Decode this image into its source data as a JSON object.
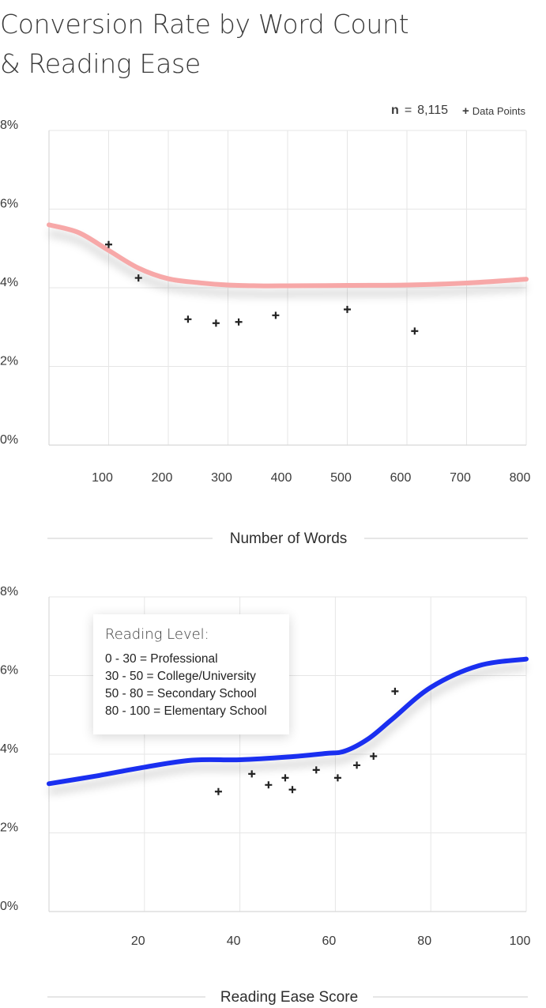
{
  "title": {
    "line1": "Conversion Rate by Word Count",
    "line2": "& Reading Ease"
  },
  "legend": {
    "n_symbol": "n",
    "n_equals": "=",
    "n_value": "8,115",
    "points_marker": "+",
    "points_label": "Data Points"
  },
  "reading_level": {
    "title": "Reading Level:",
    "items": [
      "0 - 30 = Professional",
      "30 - 50 = College/University",
      "50 - 80 = Secondary School",
      "80 - 100 = Elementary School"
    ]
  },
  "colors": {
    "chart1_line": "#f7a8a8",
    "chart2_line": "#1a2ff0",
    "points": "#222222",
    "grid": "#e6e6e6"
  },
  "chart_data": [
    {
      "type": "scatter",
      "title": "",
      "xlabel": "Number of Words",
      "ylabel": "",
      "xlim": [
        0,
        800
      ],
      "ylim": [
        0,
        8
      ],
      "x_ticks": [
        100,
        200,
        300,
        400,
        500,
        600,
        700,
        800
      ],
      "y_ticks": [
        0,
        2,
        4,
        6,
        8
      ],
      "y_tick_labels": [
        "0%",
        "2%",
        "4%",
        "6%",
        "8%"
      ],
      "grid": true,
      "points": [
        {
          "x": 100,
          "y": 5.1
        },
        {
          "x": 150,
          "y": 4.25
        },
        {
          "x": 233,
          "y": 3.2
        },
        {
          "x": 280,
          "y": 3.1
        },
        {
          "x": 318,
          "y": 3.13
        },
        {
          "x": 380,
          "y": 3.3
        },
        {
          "x": 500,
          "y": 3.45
        },
        {
          "x": 613,
          "y": 2.9
        }
      ],
      "trend": [
        {
          "x": 0,
          "y": 5.6
        },
        {
          "x": 50,
          "y": 5.4
        },
        {
          "x": 100,
          "y": 4.95
        },
        {
          "x": 150,
          "y": 4.5
        },
        {
          "x": 200,
          "y": 4.23
        },
        {
          "x": 250,
          "y": 4.13
        },
        {
          "x": 300,
          "y": 4.07
        },
        {
          "x": 350,
          "y": 4.05
        },
        {
          "x": 400,
          "y": 4.05
        },
        {
          "x": 500,
          "y": 4.06
        },
        {
          "x": 600,
          "y": 4.07
        },
        {
          "x": 700,
          "y": 4.12
        },
        {
          "x": 800,
          "y": 4.22
        }
      ]
    },
    {
      "type": "scatter",
      "title": "",
      "xlabel": "Reading Ease Score",
      "ylabel": "",
      "xlim": [
        0,
        100
      ],
      "ylim": [
        0,
        8
      ],
      "x_ticks": [
        20,
        40,
        60,
        80,
        100
      ],
      "y_ticks": [
        0,
        2,
        4,
        6,
        8
      ],
      "y_tick_labels": [
        "0%",
        "2%",
        "4%",
        "6%",
        "8%"
      ],
      "grid": true,
      "points": [
        {
          "x": 35.5,
          "y": 3.05
        },
        {
          "x": 42.5,
          "y": 3.5
        },
        {
          "x": 46,
          "y": 3.22
        },
        {
          "x": 49.5,
          "y": 3.4
        },
        {
          "x": 51,
          "y": 3.1
        },
        {
          "x": 56,
          "y": 3.6
        },
        {
          "x": 60.5,
          "y": 3.4
        },
        {
          "x": 64.5,
          "y": 3.72
        },
        {
          "x": 68,
          "y": 3.95
        },
        {
          "x": 72.5,
          "y": 5.6
        }
      ],
      "trend": [
        {
          "x": 0,
          "y": 3.25
        },
        {
          "x": 10,
          "y": 3.45
        },
        {
          "x": 20,
          "y": 3.67
        },
        {
          "x": 30,
          "y": 3.85
        },
        {
          "x": 40,
          "y": 3.86
        },
        {
          "x": 50,
          "y": 3.93
        },
        {
          "x": 58,
          "y": 4.02
        },
        {
          "x": 62,
          "y": 4.08
        },
        {
          "x": 67,
          "y": 4.4
        },
        {
          "x": 72,
          "y": 4.9
        },
        {
          "x": 80,
          "y": 5.7
        },
        {
          "x": 90,
          "y": 6.25
        },
        {
          "x": 100,
          "y": 6.42
        }
      ]
    }
  ]
}
